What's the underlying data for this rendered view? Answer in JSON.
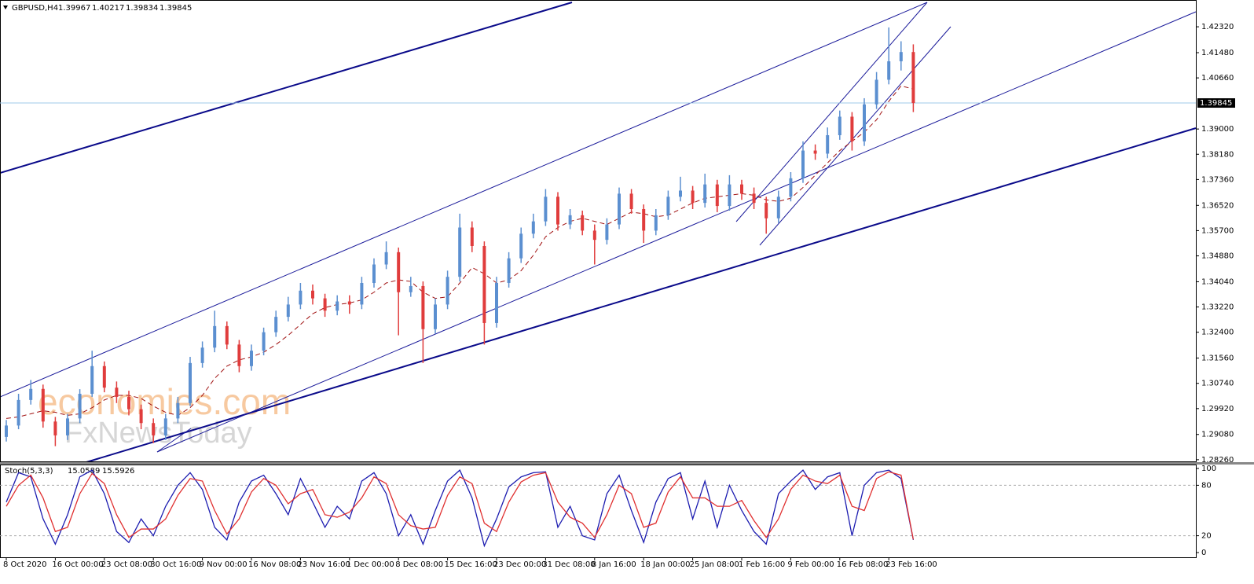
{
  "chart_data": [
    {
      "type": "candlestick",
      "title": "GBPUSD,H4",
      "last_bar": {
        "open": 1.39967,
        "high": 1.40217,
        "low": 1.39834,
        "close": 1.39845
      },
      "current_price": 1.39845,
      "watermark": [
        "economies.com",
        "FxNewsToday"
      ],
      "categories": [
        "8 Oct 2020",
        null,
        null,
        null,
        "16 Oct 00:00",
        null,
        null,
        null,
        "23 Oct 08:00",
        null,
        null,
        null,
        "30 Oct 16:00",
        null,
        null,
        null,
        "9 Nov 00:00",
        null,
        null,
        null,
        "16 Nov 08:00",
        null,
        null,
        null,
        "23 Nov 16:00",
        null,
        null,
        null,
        "1 Dec 00:00",
        null,
        null,
        null,
        "8 Dec 08:00",
        null,
        null,
        null,
        "15 Dec 16:00",
        null,
        null,
        null,
        "23 Dec 00:00",
        null,
        null,
        null,
        "31 Dec 08:00",
        null,
        null,
        null,
        "8 Jan 16:00",
        null,
        null,
        null,
        "18 Jan 00:00",
        null,
        null,
        null,
        "25 Jan 08:00",
        null,
        null,
        null,
        "1 Feb 16:00",
        null,
        null,
        null,
        "9 Feb 00:00",
        null,
        null,
        null,
        "16 Feb 08:00",
        null,
        null,
        null,
        "23 Feb 16:00",
        null,
        null
      ],
      "open": [
        1.29,
        1.2937,
        1.302,
        1.3056,
        1.295,
        1.2905,
        1.296,
        1.304,
        1.313,
        1.306,
        1.303,
        1.299,
        1.2945,
        1.2905,
        1.296,
        1.301,
        1.314,
        1.319,
        1.326,
        1.32,
        1.313,
        1.318,
        1.324,
        1.329,
        1.333,
        1.3375,
        1.335,
        1.331,
        1.334,
        1.333,
        1.34,
        1.346,
        1.35,
        1.337,
        1.339,
        1.325,
        1.333,
        1.342,
        1.358,
        1.352,
        1.327,
        1.34,
        1.348,
        1.356,
        1.36,
        1.368,
        1.359,
        1.362,
        1.357,
        1.354,
        1.359,
        1.369,
        1.364,
        1.357,
        1.362,
        1.368,
        1.37,
        1.366,
        1.372,
        1.365,
        1.372,
        1.369,
        1.366,
        1.361,
        1.368,
        1.374,
        1.383,
        1.382,
        1.388,
        1.394,
        1.386,
        1.398,
        1.406,
        1.412,
        1.415
      ],
      "high": [
        1.2955,
        1.304,
        1.3085,
        1.307,
        1.2965,
        1.2975,
        1.3055,
        1.318,
        1.3145,
        1.308,
        1.305,
        1.3005,
        1.296,
        1.2975,
        1.303,
        1.316,
        1.321,
        1.331,
        1.3275,
        1.3215,
        1.32,
        1.3255,
        1.331,
        1.3355,
        1.34,
        1.3395,
        1.3365,
        1.336,
        1.336,
        1.342,
        1.348,
        1.3535,
        1.3515,
        1.342,
        1.3405,
        1.335,
        1.344,
        1.3625,
        1.36,
        1.3535,
        1.342,
        1.35,
        1.358,
        1.3625,
        1.3705,
        1.3695,
        1.364,
        1.3635,
        1.359,
        1.361,
        1.371,
        1.3705,
        1.3655,
        1.364,
        1.37,
        1.3745,
        1.3715,
        1.3755,
        1.3735,
        1.375,
        1.3735,
        1.371,
        1.368,
        1.37,
        1.376,
        1.386,
        1.385,
        1.3905,
        1.396,
        1.3955,
        1.4,
        1.4085,
        1.423,
        1.4185,
        1.4175
      ],
      "low": [
        1.2885,
        1.2925,
        1.3005,
        1.293,
        1.287,
        1.289,
        1.2945,
        1.303,
        1.3045,
        1.301,
        1.297,
        1.2925,
        1.288,
        1.289,
        1.2945,
        1.3,
        1.3125,
        1.3175,
        1.3185,
        1.311,
        1.3115,
        1.3165,
        1.3225,
        1.3275,
        1.3315,
        1.333,
        1.329,
        1.3295,
        1.33,
        1.3315,
        1.3385,
        1.3445,
        1.323,
        1.3355,
        1.314,
        1.3235,
        1.3315,
        1.3405,
        1.35,
        1.32,
        1.3255,
        1.3385,
        1.3465,
        1.3545,
        1.3585,
        1.357,
        1.3575,
        1.3555,
        1.346,
        1.3525,
        1.3575,
        1.3625,
        1.353,
        1.3555,
        1.3605,
        1.3665,
        1.364,
        1.3645,
        1.363,
        1.3635,
        1.367,
        1.364,
        1.356,
        1.3595,
        1.3665,
        1.3725,
        1.38,
        1.3805,
        1.3865,
        1.383,
        1.3845,
        1.3965,
        1.4045,
        1.409,
        1.3955
      ],
      "close": [
        1.2937,
        1.302,
        1.3056,
        1.295,
        1.2905,
        1.296,
        1.304,
        1.313,
        1.306,
        1.303,
        1.299,
        1.2945,
        1.2905,
        1.296,
        1.301,
        1.314,
        1.319,
        1.326,
        1.32,
        1.313,
        1.318,
        1.324,
        1.329,
        1.333,
        1.3375,
        1.335,
        1.331,
        1.334,
        1.333,
        1.34,
        1.346,
        1.35,
        1.337,
        1.339,
        1.325,
        1.333,
        1.342,
        1.358,
        1.352,
        1.327,
        1.34,
        1.348,
        1.356,
        1.36,
        1.368,
        1.359,
        1.362,
        1.357,
        1.354,
        1.359,
        1.369,
        1.364,
        1.357,
        1.362,
        1.368,
        1.37,
        1.366,
        1.372,
        1.365,
        1.372,
        1.369,
        1.366,
        1.361,
        1.368,
        1.374,
        1.383,
        1.382,
        1.388,
        1.394,
        1.386,
        1.398,
        1.406,
        1.412,
        1.415,
        1.39845
      ],
      "up_color": "#5b8fd0",
      "down_color": "#e03c3c",
      "series": [
        {
          "color": "#a01010",
          "values": [
            1.296,
            1.2965,
            1.2975,
            1.2985,
            1.298,
            1.297,
            1.2975,
            1.2995,
            1.302,
            1.3035,
            1.3035,
            1.3025,
            1.3,
            1.298,
            1.297,
            1.2995,
            1.3035,
            1.309,
            1.313,
            1.315,
            1.316,
            1.3175,
            1.32,
            1.323,
            1.3265,
            1.33,
            1.332,
            1.333,
            1.3335,
            1.3345,
            1.337,
            1.34,
            1.341,
            1.3405,
            1.337,
            1.335,
            1.3355,
            1.34,
            1.345,
            1.343,
            1.34,
            1.341,
            1.344,
            1.349,
            1.355,
            1.358,
            1.36,
            1.361,
            1.36,
            1.359,
            1.361,
            1.363,
            1.3625,
            1.3615,
            1.362,
            1.364,
            1.366,
            1.3675,
            1.368,
            1.3685,
            1.369,
            1.3685,
            1.367,
            1.3665,
            1.3675,
            1.371,
            1.375,
            1.379,
            1.383,
            1.386,
            1.389,
            1.393,
            1.399,
            1.404,
            1.403
          ]
        }
      ],
      "ylim": [
        1.2818,
        1.4319
      ],
      "yticks": [
        {
          "value": 1.4232,
          "label": "1.42320"
        },
        {
          "value": 1.4148,
          "label": "1.41480"
        },
        {
          "value": 1.4066,
          "label": "1.40660"
        },
        {
          "value": 1.39,
          "label": "1.39000"
        },
        {
          "value": 1.3818,
          "label": "1.38180"
        },
        {
          "value": 1.3736,
          "label": "1.37360"
        },
        {
          "value": 1.3652,
          "label": "1.36520"
        },
        {
          "value": 1.357,
          "label": "1.35700"
        },
        {
          "value": 1.3488,
          "label": "1.34880"
        },
        {
          "value": 1.3404,
          "label": "1.34040"
        },
        {
          "value": 1.3322,
          "label": "1.33220"
        },
        {
          "value": 1.324,
          "label": "1.32400"
        },
        {
          "value": 1.3156,
          "label": "1.31560"
        },
        {
          "value": 1.3074,
          "label": "1.30740"
        },
        {
          "value": 1.2992,
          "label": "1.29920"
        },
        {
          "value": 1.2908,
          "label": "1.29080"
        },
        {
          "value": 1.2826,
          "label": "1.28260"
        }
      ]
    },
    {
      "type": "stochastic",
      "title": "Stoch(5,3,3)",
      "series": [
        {
          "color": "#1c1cb0",
          "values": [
            60,
            95,
            90,
            40,
            10,
            45,
            90,
            98,
            70,
            25,
            12,
            40,
            20,
            55,
            80,
            95,
            75,
            30,
            15,
            60,
            85,
            92,
            70,
            45,
            88,
            60,
            30,
            55,
            40,
            85,
            95,
            70,
            20,
            45,
            10,
            50,
            85,
            98,
            65,
            8,
            40,
            78,
            90,
            95,
            96,
            30,
            55,
            20,
            15,
            70,
            92,
            50,
            12,
            60,
            88,
            95,
            40,
            85,
            30,
            80,
            50,
            25,
            10,
            70,
            85,
            98,
            75,
            90,
            95,
            20,
            80,
            95,
            98,
            88,
            15.0589
          ]
        },
        {
          "color": "#e03030",
          "values": [
            55,
            80,
            92,
            65,
            25,
            30,
            70,
            94,
            82,
            45,
            18,
            28,
            28,
            40,
            68,
            88,
            85,
            50,
            22,
            40,
            72,
            88,
            80,
            58,
            70,
            75,
            45,
            42,
            48,
            65,
            90,
            82,
            45,
            32,
            28,
            30,
            68,
            90,
            82,
            35,
            25,
            60,
            84,
            92,
            95,
            60,
            42,
            35,
            18,
            45,
            80,
            70,
            30,
            35,
            72,
            90,
            65,
            65,
            55,
            55,
            62,
            38,
            18,
            40,
            75,
            92,
            85,
            82,
            92,
            55,
            50,
            88,
            96,
            92,
            15.5926
          ]
        }
      ],
      "levels": [
        80,
        20
      ],
      "ylim": [
        0,
        100
      ],
      "yticks": [
        100,
        80,
        20,
        0
      ]
    }
  ]
}
